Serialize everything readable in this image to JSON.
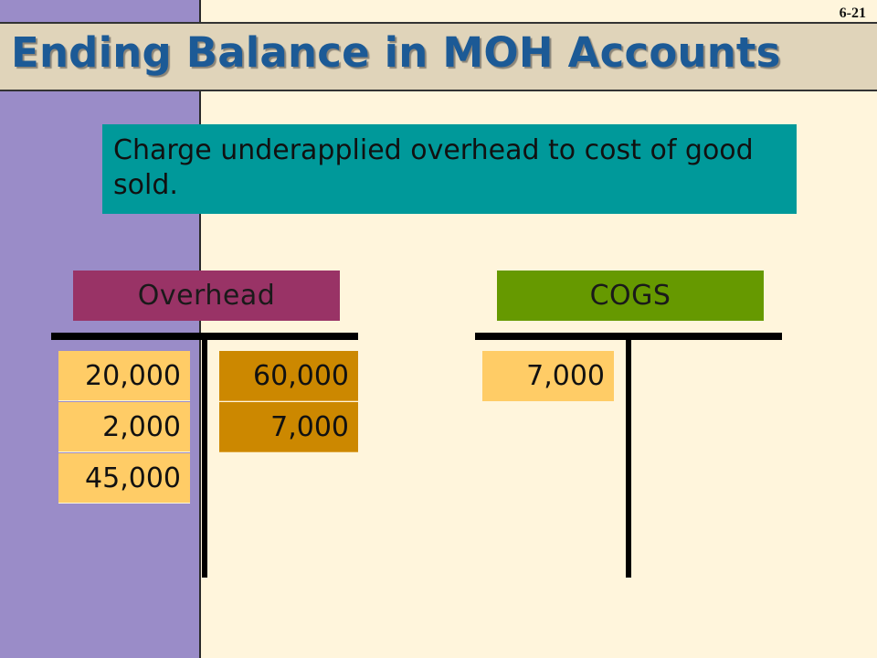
{
  "slide": {
    "number": "6-21",
    "title": "Ending Balance in MOH Accounts",
    "callout": "Charge underapplied overhead to cost of good sold."
  },
  "overhead_account": {
    "name": "Overhead",
    "color": "#993366",
    "debits": [
      "20,000",
      "2,000",
      "45,000"
    ],
    "credits": [
      "60,000",
      "7,000"
    ]
  },
  "cogs_account": {
    "name": "COGS",
    "color": "#669900",
    "debits": [
      "7,000"
    ],
    "credits": []
  },
  "colors": {
    "background": "#fff5dc",
    "sidebar": "#9a8cc8",
    "title_bar": "#e0d4ba",
    "title_text": "#1c5a96",
    "callout": "#00999a",
    "debit_cell": "#ffcc66",
    "credit_cell": "#cc8800"
  }
}
